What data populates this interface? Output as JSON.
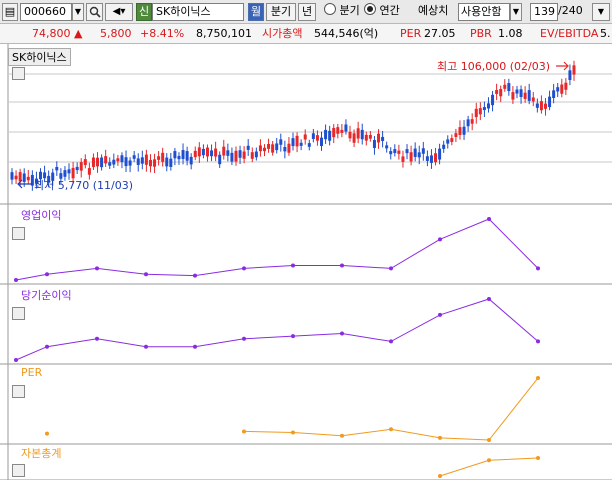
{
  "toolbar": {
    "code": "000660",
    "market_badge": "신",
    "name": "SK하이닉스",
    "period_badge": "월",
    "period_label": "분기",
    "year_label": "년",
    "radio_quarter": "분기",
    "radio_annual": "연간",
    "forecast_label": "예상치",
    "forecast_value": "사용안함",
    "count_value": "139",
    "count_total": "/240"
  },
  "info": {
    "price": "74,800",
    "change": "5,800",
    "change_pct": "+8.41",
    "volume": "8,750,101",
    "mcap_label": "시가총액",
    "mcap_value": "544,546(억)",
    "per_label": "PER",
    "per_value": "27.05",
    "pbr_label": "PBR",
    "pbr_value": "1.08",
    "ev_label": "EV/EBITDA",
    "ev_value": "5."
  },
  "panels": {
    "price_title": "SK하이닉스",
    "max_label": "최고 106,000 (02/03)",
    "min_label": "최저 5,770 (11/03)",
    "p1_title": "영업이익",
    "p2_title": "당기순이익",
    "p3_title": "PER",
    "p4_title": "자본총계"
  },
  "colors": {
    "up": "#e8272a",
    "down": "#1f4fcf",
    "purple": "#8a2be2",
    "orange": "#f09a1e"
  },
  "chart_data": [
    {
      "type": "candlestick",
      "name": "SK하이닉스",
      "annotations": [
        "최고 106,000 (02/03)",
        "최저 5,770 (11/03)"
      ]
    },
    {
      "type": "line",
      "name": "영업이익",
      "values": [
        1,
        3,
        5,
        3,
        2.5,
        5,
        6,
        6,
        5,
        15,
        22,
        5
      ]
    },
    {
      "type": "line",
      "name": "당기순이익",
      "values": [
        1,
        6,
        9,
        6,
        6,
        9,
        10,
        11,
        8,
        18,
        24,
        8
      ]
    },
    {
      "type": "line",
      "name": "PER",
      "values": [
        null,
        14,
        null,
        null,
        null,
        15,
        14.5,
        13,
        16,
        12,
        11,
        40
      ]
    },
    {
      "type": "line",
      "name": "자본총계",
      "values": [
        null,
        null,
        null,
        null,
        null,
        null,
        null,
        null,
        null,
        2,
        9,
        10
      ]
    }
  ]
}
